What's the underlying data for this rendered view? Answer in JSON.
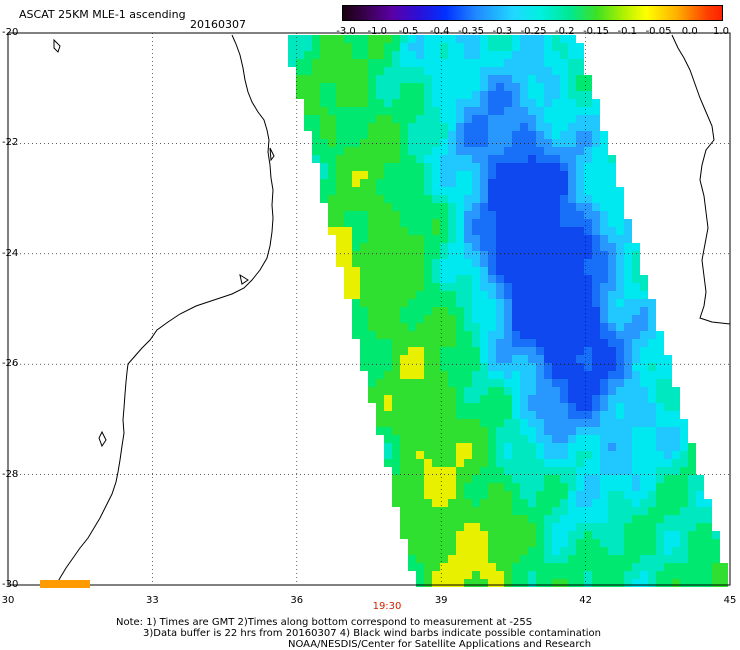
{
  "header": {
    "title": "ASCAT 25KM MLE-1 ascending",
    "date": "20160307"
  },
  "colorbar": {
    "labels": [
      "-3.0",
      "-1.0",
      "-0.5",
      "-0.4",
      "-0.35",
      "-0.3",
      "-0.25",
      "-0.2",
      "-0.15",
      "-0.1",
      "-0.05",
      "0.0",
      "1.0"
    ]
  },
  "map": {
    "lat_labels": [
      "-20",
      "-22",
      "-24",
      "-26",
      "-28",
      "-30"
    ],
    "lon_labels": [
      "30",
      "33",
      "36",
      "39",
      "42",
      "45"
    ],
    "lat_range": [
      -30,
      -20
    ],
    "lon_range": [
      30,
      45
    ],
    "grid": "dotted",
    "pass_time": "19:30"
  },
  "notes": {
    "line1": "Note: 1) Times are GMT 2)Times along bottom correspond to measurement at -25S",
    "line2": "3)Data buffer is 22 hrs from 20160307 4) Black wind barbs indicate possible contamination",
    "line3": "NOAA/NESDIS/Center for Satellite Applications and Research"
  }
}
